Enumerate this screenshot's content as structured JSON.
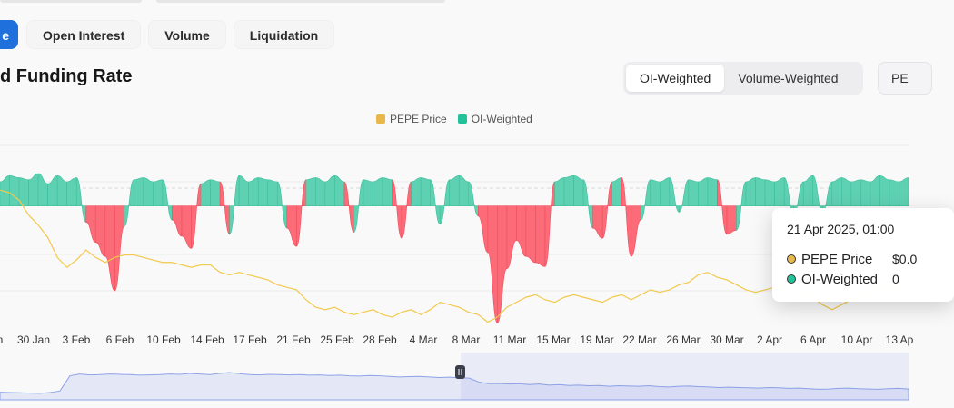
{
  "tabs": [
    {
      "label": "e",
      "active": true
    },
    {
      "label": "Open Interest",
      "active": false
    },
    {
      "label": "Volume",
      "active": false
    },
    {
      "label": "Liquidation",
      "active": false
    }
  ],
  "page_title": "d Funding Rate",
  "weighting_toggle": {
    "options": [
      "OI-Weighted",
      "Volume-Weighted"
    ],
    "selected": "OI-Weighted"
  },
  "coin_select": {
    "value": "PE"
  },
  "legend": [
    {
      "name": "PEPE Price",
      "color": "#e8b84a"
    },
    {
      "name": "OI-Weighted",
      "color": "#22c39b"
    }
  ],
  "tooltip": {
    "title": "21 Apr 2025, 01:00",
    "rows": [
      {
        "name": "PEPE Price",
        "value": "$0.0",
        "color": "#e8b84a"
      },
      {
        "name": "OI-Weighted",
        "value": "0",
        "color": "#22c39b"
      }
    ]
  },
  "colors": {
    "positive": "#5fd1b3",
    "negative": "#fb6b78",
    "price": "#f2c94c",
    "accent": "#1f6fdc",
    "navigator": "#8ea3e8"
  },
  "icons": {
    "navigator_handle": "pause-handle-icon"
  },
  "chart_data": {
    "type": "area",
    "x_ticks": [
      "n",
      "30 Jan",
      "3 Feb",
      "6 Feb",
      "10 Feb",
      "14 Feb",
      "17 Feb",
      "21 Feb",
      "25 Feb",
      "28 Feb",
      "4 Mar",
      "8 Mar",
      "11 Mar",
      "15 Mar",
      "19 Mar",
      "22 Mar",
      "26 Mar",
      "30 Mar",
      "2 Apr",
      "6 Apr",
      "10 Apr",
      "13 Ap"
    ],
    "funding_rate_ylim": [
      -0.006,
      0.003
    ],
    "funding_rate": [
      0.0012,
      0.0015,
      0.0014,
      0.0013,
      0.0016,
      0.0011,
      0.0015,
      0.0012,
      0.0014,
      -0.0008,
      -0.0018,
      -0.0025,
      -0.0042,
      -0.001,
      0.0013,
      0.0014,
      0.0012,
      0.0013,
      -0.0007,
      -0.0015,
      -0.0021,
      0.0011,
      0.0013,
      0.0012,
      -0.0014,
      0.0015,
      0.0012,
      0.0014,
      0.0013,
      0.0012,
      -0.0011,
      -0.002,
      0.0013,
      0.0014,
      0.0012,
      0.0015,
      0.0012,
      -0.0013,
      0.0013,
      0.0012,
      0.0014,
      0.0013,
      -0.0016,
      0.0012,
      0.0014,
      0.0013,
      -0.0009,
      0.0013,
      0.0015,
      0.0012,
      -0.0005,
      -0.0023,
      -0.0058,
      -0.0031,
      -0.0017,
      -0.0025,
      -0.0028,
      -0.003,
      0.0012,
      0.0014,
      0.0015,
      0.0013,
      -0.0011,
      -0.0016,
      0.0012,
      0.0014,
      -0.0025,
      -0.0007,
      0.0013,
      0.0012,
      0.0014,
      -0.0003,
      0.0013,
      0.0012,
      0.0014,
      0.0013,
      -0.0014,
      -0.0012,
      0.0012,
      0.0014,
      0.0013,
      0.0012,
      0.0014,
      -0.0004,
      0.0012,
      0.0015,
      -0.0003,
      0.0012,
      0.0014,
      0.0012,
      0.0013,
      0.0012,
      0.0015,
      0.0013,
      0.0012,
      0.0014
    ],
    "price_ylim": [
      -3.3e-06,
      4e-06
    ],
    "price": [
      2.2e-06,
      2.1e-06,
      1.8e-06,
      1.2e-06,
      8e-07,
      3e-07,
      -5e-07,
      -9e-07,
      -6e-07,
      -2e-07,
      -5e-07,
      -7e-07,
      -5e-07,
      -4e-07,
      -4e-07,
      -5e-07,
      -6e-07,
      -7e-07,
      -7e-07,
      -8e-07,
      -9e-07,
      -8e-07,
      -8e-07,
      -1.1e-06,
      -1.2e-06,
      -1.1e-06,
      -1.2e-06,
      -1.3e-06,
      -1.4e-06,
      -1.6e-06,
      -1.7e-06,
      -1.8e-06,
      -2.2e-06,
      -2.5e-06,
      -2.6e-06,
      -2.5e-06,
      -2.7e-06,
      -2.8e-06,
      -2.7e-06,
      -2.6e-06,
      -2.8e-06,
      -2.9e-06,
      -2.7e-06,
      -2.6e-06,
      -2.8e-06,
      -2.6e-06,
      -2.3e-06,
      -2.4e-06,
      -2.5e-06,
      -2.7e-06,
      -2.8e-06,
      -3.1e-06,
      -2.9e-06,
      -2.5e-06,
      -2.3e-06,
      -2.1e-06,
      -2e-06,
      -2.2e-06,
      -2.3e-06,
      -2.1e-06,
      -2e-06,
      -2.1e-06,
      -2.2e-06,
      -2.3e-06,
      -2.1e-06,
      -2e-06,
      -2.2e-06,
      -2e-06,
      -1.8e-06,
      -1.9e-06,
      -1.8e-06,
      -1.6e-06,
      -1.5e-06,
      -1.2e-06,
      -1.1e-06,
      -1.3e-06,
      -1.4e-06,
      -1.6e-06,
      -1.8e-06,
      -1.9e-06,
      -1.8e-06,
      -1.7e-06,
      -1.6e-06,
      -1.5e-06,
      -1.9e-06,
      -2.1e-06,
      -2.4e-06,
      -2.6e-06,
      -2.4e-06,
      -2.2e-06,
      -2.1e-06,
      -1.9e-06,
      -1.7e-06,
      -1.6e-06,
      -1.7e-06,
      -1.5e-06
    ],
    "grid": true,
    "legend_position": "top-center"
  },
  "navigator": {
    "values": [
      0.26,
      0.25,
      0.24,
      0.23,
      0.22,
      0.25,
      0.3,
      0.82,
      0.88,
      0.85,
      0.86,
      0.88,
      0.87,
      0.86,
      0.84,
      0.85,
      0.86,
      0.88,
      0.87,
      0.9,
      0.88,
      0.86,
      0.9,
      0.93,
      0.89,
      0.86,
      0.85,
      0.87,
      0.86,
      0.85,
      0.86,
      0.84,
      0.85,
      0.83,
      0.84,
      0.82,
      0.81,
      0.83,
      0.82,
      0.8,
      0.78,
      0.79,
      0.8,
      0.78,
      0.76,
      0.77,
      0.75,
      0.74,
      0.6,
      0.55,
      0.56,
      0.54,
      0.55,
      0.52,
      0.54,
      0.5,
      0.52,
      0.49,
      0.5,
      0.48,
      0.49,
      0.46,
      0.48,
      0.47,
      0.46,
      0.48,
      0.45,
      0.44,
      0.46,
      0.47,
      0.45,
      0.44,
      0.42,
      0.43,
      0.42,
      0.41,
      0.4,
      0.42,
      0.41,
      0.39,
      0.4,
      0.38,
      0.36,
      0.37,
      0.39,
      0.4,
      0.38,
      0.37,
      0.36,
      0.38,
      0.39,
      0.37
    ],
    "selected_from": 0.5
  }
}
